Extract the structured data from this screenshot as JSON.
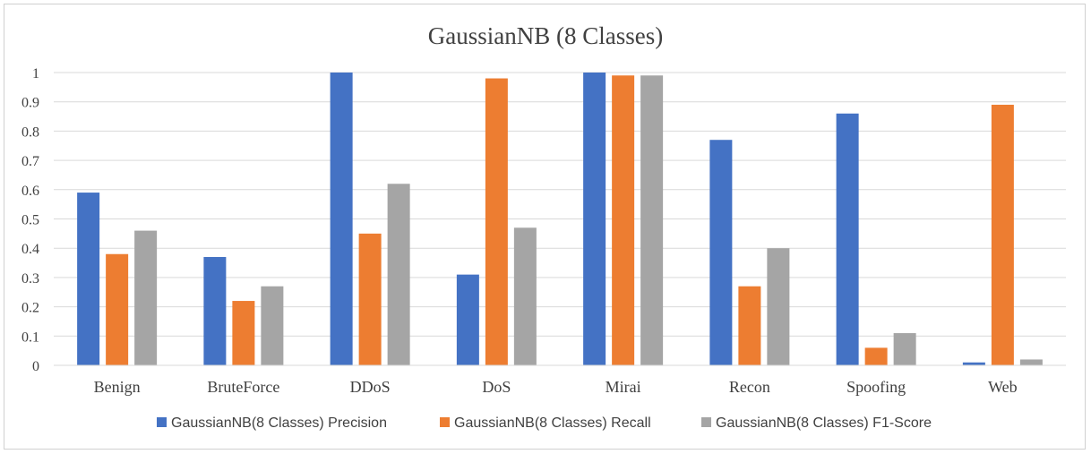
{
  "chart_data": {
    "type": "bar",
    "title": "GaussianNB (8  Classes)",
    "xlabel": "",
    "ylabel": "",
    "ylim": [
      0,
      1
    ],
    "yticks": [
      "0",
      "0.1",
      "0.2",
      "0.3",
      "0.4",
      "0.5",
      "0.6",
      "0.7",
      "0.8",
      "0.9",
      "1"
    ],
    "grid": true,
    "legend_position": "bottom",
    "categories": [
      "Benign",
      "BruteForce",
      "DDoS",
      "DoS",
      "Mirai",
      "Recon",
      "Spoofing",
      "Web"
    ],
    "series": [
      {
        "name": "GaussianNB(8  Classes) Precision",
        "color": "#4472C4",
        "values": [
          0.59,
          0.37,
          1.0,
          0.31,
          1.0,
          0.77,
          0.86,
          0.01
        ]
      },
      {
        "name": "GaussianNB(8  Classes) Recall",
        "color": "#ED7D31",
        "values": [
          0.38,
          0.22,
          0.45,
          0.98,
          0.99,
          0.27,
          0.06,
          0.89
        ]
      },
      {
        "name": "GaussianNB(8  Classes) F1-Score",
        "color": "#A5A5A5",
        "values": [
          0.46,
          0.27,
          0.62,
          0.47,
          0.99,
          0.4,
          0.11,
          0.02
        ]
      }
    ]
  }
}
